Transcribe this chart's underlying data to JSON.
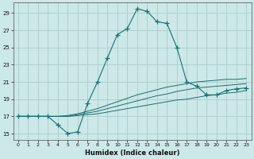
{
  "xlabel": "Humidex (Indice chaleur)",
  "background_color": "#cce8e8",
  "grid_color": "#aacccc",
  "line_color": "#1a7070",
  "xlim": [
    -0.5,
    23.5
  ],
  "ylim": [
    14.3,
    30.2
  ],
  "yticks": [
    15,
    17,
    19,
    21,
    23,
    25,
    27,
    29
  ],
  "xticks": [
    0,
    1,
    2,
    3,
    4,
    5,
    6,
    7,
    8,
    9,
    10,
    11,
    12,
    13,
    14,
    15,
    16,
    17,
    18,
    19,
    20,
    21,
    22,
    23
  ],
  "flat1_x": [
    0,
    1,
    2,
    3,
    4,
    5,
    6,
    7,
    8,
    9,
    10,
    11,
    12,
    13,
    14,
    15,
    16,
    17,
    18,
    19,
    20,
    21,
    22,
    23
  ],
  "flat1_y": [
    17.0,
    17.0,
    17.0,
    17.0,
    17.0,
    17.0,
    17.1,
    17.2,
    17.3,
    17.5,
    17.7,
    17.9,
    18.1,
    18.3,
    18.5,
    18.7,
    18.9,
    19.0,
    19.2,
    19.4,
    19.5,
    19.7,
    19.8,
    20.0
  ],
  "flat2_x": [
    0,
    1,
    2,
    3,
    4,
    5,
    6,
    7,
    8,
    9,
    10,
    11,
    12,
    13,
    14,
    15,
    16,
    17,
    18,
    19,
    20,
    21,
    22,
    23
  ],
  "flat2_y": [
    17.0,
    17.0,
    17.0,
    17.0,
    17.0,
    17.0,
    17.2,
    17.4,
    17.6,
    17.9,
    18.2,
    18.5,
    18.8,
    19.1,
    19.4,
    19.6,
    19.9,
    20.1,
    20.3,
    20.4,
    20.5,
    20.6,
    20.7,
    20.8
  ],
  "flat3_x": [
    0,
    1,
    2,
    3,
    4,
    5,
    6,
    7,
    8,
    9,
    10,
    11,
    12,
    13,
    14,
    15,
    16,
    17,
    18,
    19,
    20,
    21,
    22,
    23
  ],
  "flat3_y": [
    17.0,
    17.0,
    17.0,
    17.0,
    17.0,
    17.1,
    17.3,
    17.6,
    17.9,
    18.3,
    18.7,
    19.1,
    19.5,
    19.8,
    20.1,
    20.4,
    20.6,
    20.8,
    21.0,
    21.1,
    21.2,
    21.3,
    21.3,
    21.4
  ],
  "main_x": [
    0,
    1,
    2,
    3,
    4,
    5,
    6,
    7,
    8,
    9,
    10,
    11,
    12,
    13,
    14,
    15,
    16,
    17,
    18,
    19,
    20,
    21,
    22,
    23
  ],
  "main_y": [
    17.0,
    17.0,
    17.0,
    17.0,
    16.0,
    15.0,
    15.2,
    18.5,
    21.0,
    23.8,
    26.5,
    27.2,
    29.5,
    29.2,
    28.0,
    27.8,
    25.0,
    21.0,
    20.5,
    19.5,
    19.5,
    20.0,
    20.2,
    20.3
  ]
}
